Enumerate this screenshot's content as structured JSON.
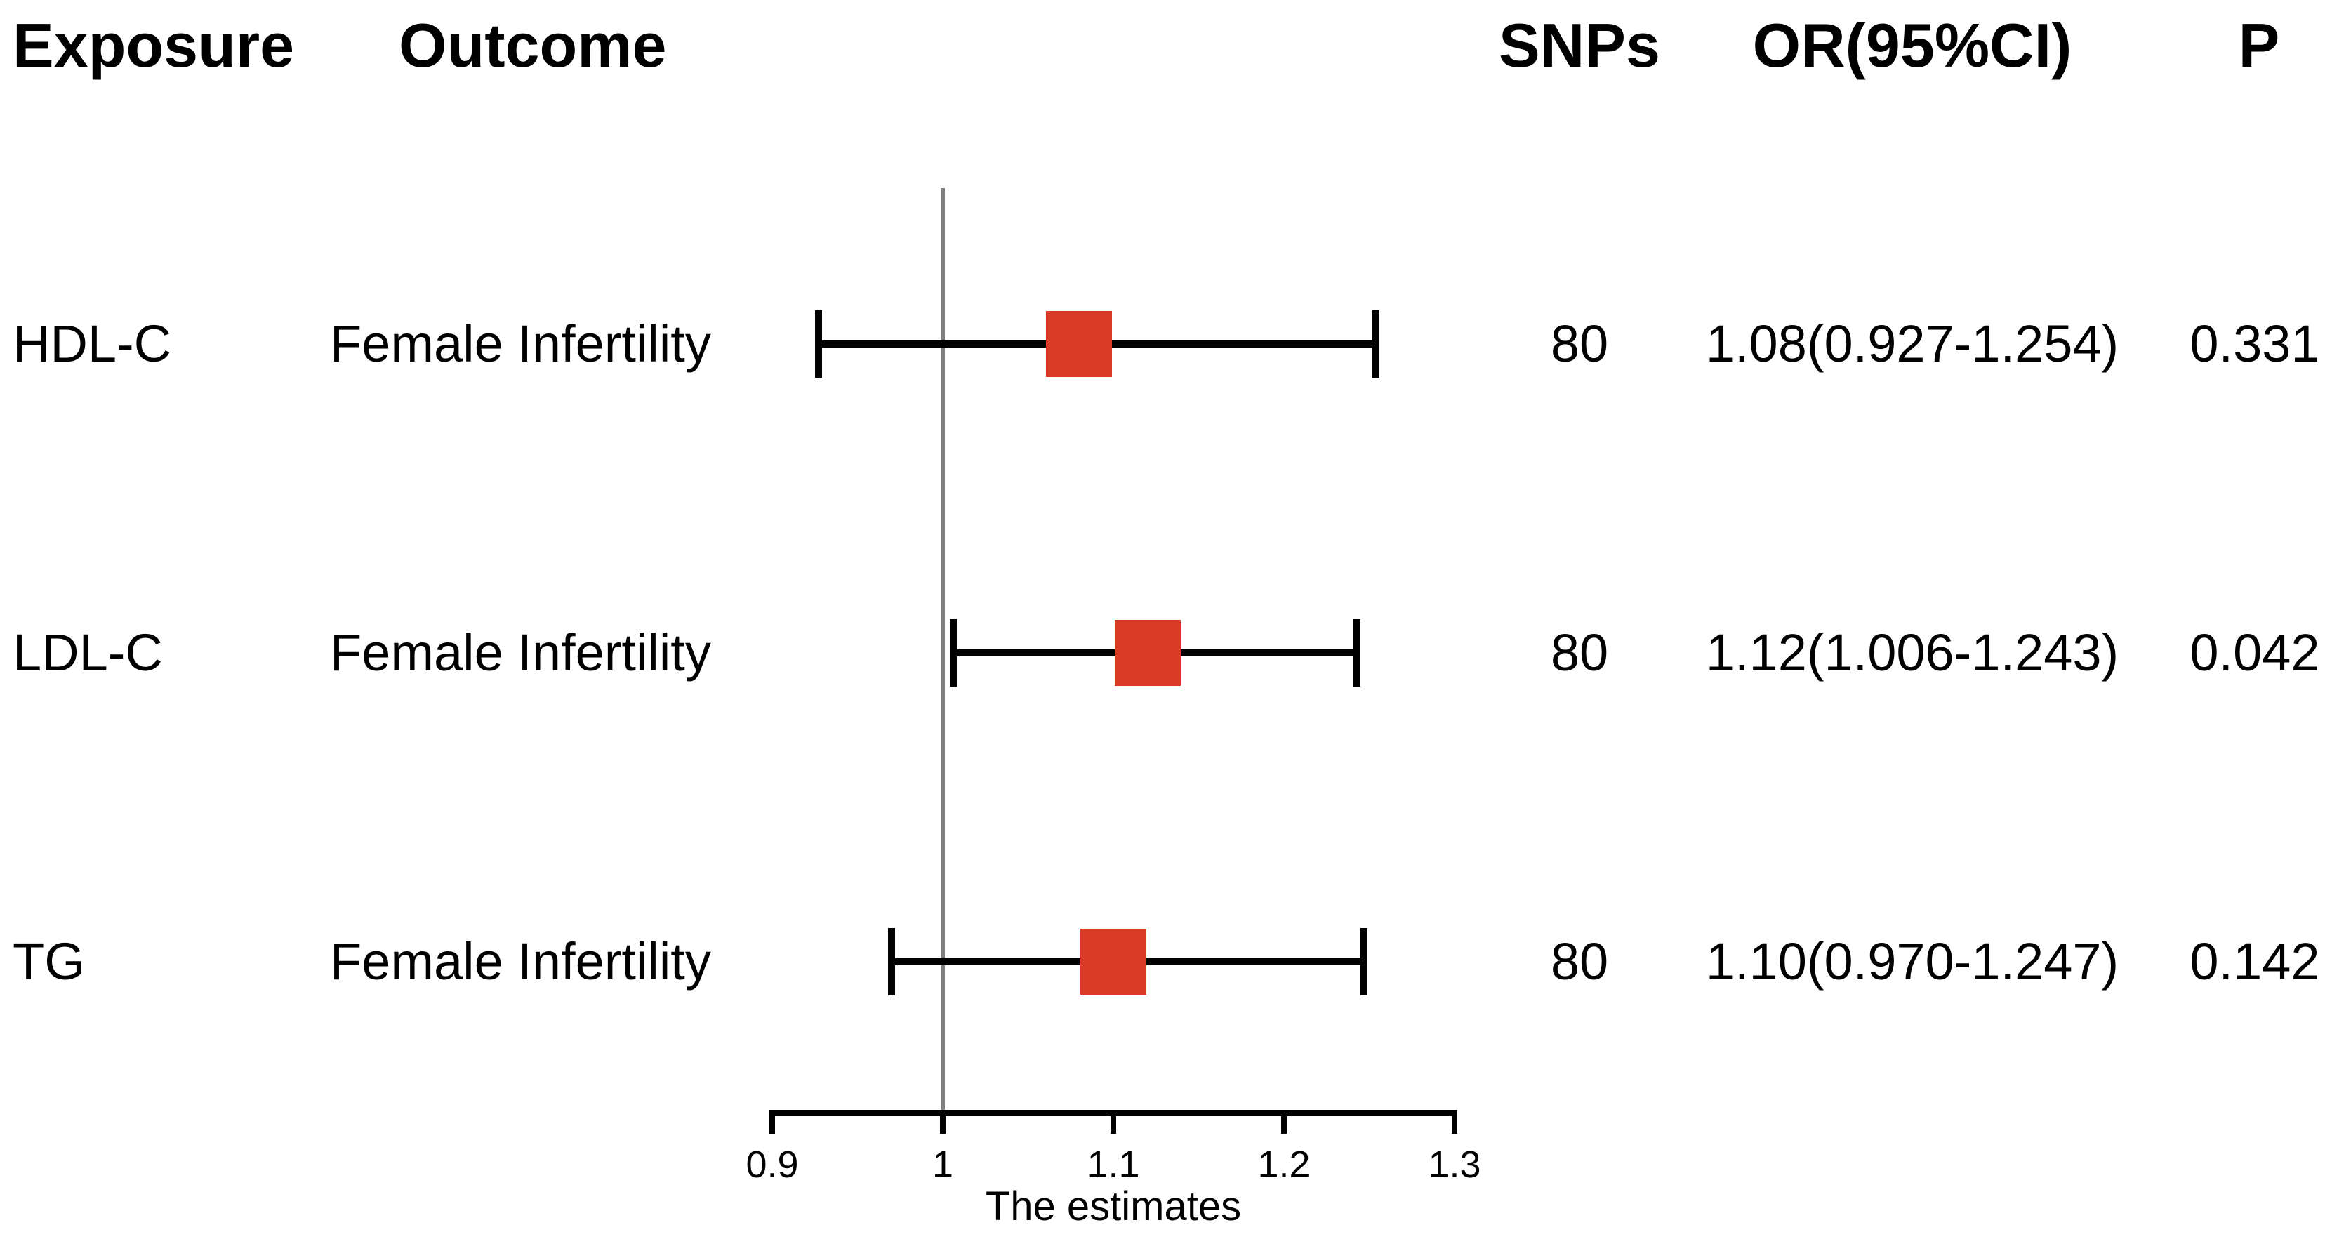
{
  "headers": {
    "exposure": "Exposure",
    "outcome": "Outcome",
    "snps": "SNPs",
    "or_ci": "OR(95%CI)",
    "p": "P"
  },
  "chart_data": {
    "type": "forest",
    "title": "",
    "xlabel": "The estimates",
    "rows": [
      {
        "exposure": "HDL-C",
        "outcome": "Female Infertility",
        "snps": "80",
        "or": 1.08,
        "ci_low": 0.927,
        "ci_high": 1.254,
        "or_ci_label": "1.08(0.927-1.254)",
        "p": "0.331"
      },
      {
        "exposure": "LDL-C",
        "outcome": "Female Infertility",
        "snps": "80",
        "or": 1.12,
        "ci_low": 1.006,
        "ci_high": 1.243,
        "or_ci_label": "1.12(1.006-1.243)",
        "p": "0.042"
      },
      {
        "exposure": "TG",
        "outcome": "Female Infertility",
        "snps": "80",
        "or": 1.1,
        "ci_low": 0.97,
        "ci_high": 1.247,
        "or_ci_label": "1.10(0.970-1.247)",
        "p": "0.142"
      }
    ],
    "xaxis": {
      "range": [
        0.9,
        1.3
      ],
      "ticks": [
        0.9,
        1.0,
        1.1,
        1.2,
        1.3
      ],
      "tick_labels": [
        "0.9",
        "1",
        "1.1",
        "1.2",
        "1.3"
      ],
      "label": "The estimates",
      "ref_line": 1.0
    },
    "colors": {
      "marker": "#d93b27",
      "ci_line": "#000000",
      "axis": "#000000",
      "ref_line": "#7f7f7f",
      "text": "#000000",
      "background": "#ffffff"
    },
    "legend": null,
    "grid": false
  }
}
